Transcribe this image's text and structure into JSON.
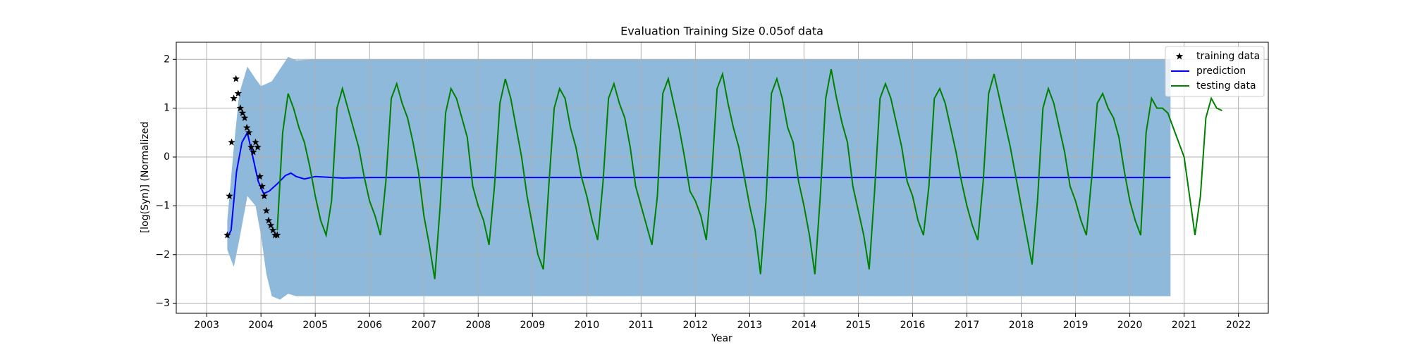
{
  "chart_data": {
    "type": "line",
    "title": "Evaluation Training Size 0.05of data",
    "xlabel": "Year",
    "ylabel": "[log(Syn)] (Normalized",
    "xlim": [
      2002.44,
      2022.55
    ],
    "ylim": [
      -3.2,
      2.35
    ],
    "xticks": [
      2003,
      2004,
      2005,
      2006,
      2007,
      2008,
      2009,
      2010,
      2011,
      2012,
      2013,
      2014,
      2015,
      2016,
      2017,
      2018,
      2019,
      2020,
      2021,
      2022
    ],
    "yticks": [
      {
        "value": -3,
        "label": "−3"
      },
      {
        "value": -2,
        "label": "−2"
      },
      {
        "value": -1,
        "label": "−1"
      },
      0,
      1,
      2
    ],
    "grid": true,
    "legend": "upper right",
    "band": {
      "color": "#8fb9da",
      "x": [
        2003.38,
        2003.5,
        2003.6,
        2003.75,
        2003.9,
        2004.0,
        2004.1,
        2004.2,
        2004.35,
        2004.5,
        2004.65,
        2005.0,
        2020.75
      ],
      "upper": [
        -1.3,
        0.2,
        1.3,
        1.85,
        1.6,
        1.45,
        1.5,
        1.55,
        1.8,
        2.05,
        1.98,
        2.0,
        2.0
      ],
      "lower": [
        -1.9,
        -2.25,
        -1.7,
        -0.8,
        -1.0,
        -1.6,
        -2.4,
        -2.85,
        -2.92,
        -2.8,
        -2.85,
        -2.85,
        -2.85
      ]
    },
    "series": [
      {
        "name": "training data",
        "type": "scatter",
        "color": "#000000",
        "x": [
          2003.38,
          2003.42,
          2003.46,
          2003.5,
          2003.54,
          2003.58,
          2003.62,
          2003.66,
          2003.7,
          2003.74,
          2003.78,
          2003.82,
          2003.86,
          2003.9,
          2003.94,
          2003.98,
          2004.02,
          2004.06,
          2004.1,
          2004.14,
          2004.18,
          2004.22,
          2004.26,
          2004.3
        ],
        "values": [
          -1.6,
          -0.8,
          0.3,
          1.2,
          1.6,
          1.3,
          1.0,
          0.9,
          0.8,
          0.6,
          0.5,
          0.2,
          0.1,
          0.3,
          0.2,
          -0.4,
          -0.6,
          -0.8,
          -1.1,
          -1.3,
          -1.4,
          -1.5,
          -1.6,
          -1.6
        ]
      },
      {
        "name": "prediction",
        "type": "line",
        "color": "#0000ff",
        "x": [
          2003.38,
          2003.45,
          2003.55,
          2003.65,
          2003.75,
          2003.85,
          2003.95,
          2004.05,
          2004.15,
          2004.3,
          2004.45,
          2004.55,
          2004.65,
          2004.8,
          2005.0,
          2005.5,
          2006.0,
          2020.75
        ],
        "values": [
          -1.65,
          -1.5,
          -0.3,
          0.3,
          0.5,
          0.0,
          -0.5,
          -0.75,
          -0.7,
          -0.55,
          -0.38,
          -0.33,
          -0.4,
          -0.45,
          -0.4,
          -0.43,
          -0.42,
          -0.42
        ]
      },
      {
        "name": "testing data",
        "type": "line",
        "color": "#008000",
        "x": [
          2004.3,
          2004.4,
          2004.5,
          2004.6,
          2004.7,
          2004.8,
          2004.9,
          2005.0,
          2005.1,
          2005.2,
          2005.3,
          2005.4,
          2005.5,
          2005.6,
          2005.7,
          2005.8,
          2005.9,
          2006.0,
          2006.1,
          2006.2,
          2006.3,
          2006.4,
          2006.5,
          2006.6,
          2006.7,
          2006.8,
          2006.9,
          2007.0,
          2007.1,
          2007.2,
          2007.3,
          2007.4,
          2007.5,
          2007.6,
          2007.7,
          2007.8,
          2007.9,
          2008.0,
          2008.1,
          2008.2,
          2008.3,
          2008.4,
          2008.5,
          2008.6,
          2008.7,
          2008.8,
          2008.9,
          2009.0,
          2009.1,
          2009.2,
          2009.3,
          2009.4,
          2009.5,
          2009.6,
          2009.7,
          2009.8,
          2009.9,
          2010.0,
          2010.1,
          2010.2,
          2010.3,
          2010.4,
          2010.5,
          2010.6,
          2010.7,
          2010.8,
          2010.9,
          2011.0,
          2011.1,
          2011.2,
          2011.3,
          2011.4,
          2011.5,
          2011.6,
          2011.7,
          2011.8,
          2011.9,
          2012.0,
          2012.1,
          2012.2,
          2012.3,
          2012.4,
          2012.5,
          2012.6,
          2012.7,
          2012.8,
          2012.9,
          2013.0,
          2013.1,
          2013.2,
          2013.3,
          2013.4,
          2013.5,
          2013.6,
          2013.7,
          2013.8,
          2013.9,
          2014.0,
          2014.1,
          2014.2,
          2014.3,
          2014.4,
          2014.5,
          2014.6,
          2014.7,
          2014.8,
          2014.9,
          2015.0,
          2015.1,
          2015.2,
          2015.3,
          2015.4,
          2015.5,
          2015.6,
          2015.7,
          2015.8,
          2015.9,
          2016.0,
          2016.1,
          2016.2,
          2016.3,
          2016.4,
          2016.5,
          2016.6,
          2016.7,
          2016.8,
          2016.9,
          2017.0,
          2017.1,
          2017.2,
          2017.3,
          2017.4,
          2017.5,
          2017.6,
          2017.7,
          2017.8,
          2017.9,
          2018.0,
          2018.1,
          2018.2,
          2018.3,
          2018.4,
          2018.5,
          2018.6,
          2018.7,
          2018.8,
          2018.9,
          2019.0,
          2019.1,
          2019.2,
          2019.3,
          2019.4,
          2019.5,
          2019.6,
          2019.7,
          2019.8,
          2019.9,
          2020.0,
          2020.1,
          2020.2,
          2020.3,
          2020.4,
          2020.5,
          2020.6,
          2020.7,
          2020.8,
          2020.9,
          2021.0,
          2021.1,
          2021.2,
          2021.3,
          2021.4,
          2021.5,
          2021.6,
          2021.7
        ],
        "values": [
          -1.5,
          0.5,
          1.3,
          1.0,
          0.6,
          0.3,
          -0.2,
          -0.8,
          -1.3,
          -1.6,
          -0.9,
          1.0,
          1.4,
          1.0,
          0.6,
          0.2,
          -0.4,
          -0.9,
          -1.2,
          -1.6,
          -0.5,
          1.2,
          1.5,
          1.1,
          0.8,
          0.3,
          -0.3,
          -1.2,
          -1.8,
          -2.5,
          -1.0,
          0.9,
          1.4,
          1.2,
          0.8,
          0.4,
          -0.6,
          -1.0,
          -1.3,
          -1.8,
          -0.6,
          1.1,
          1.6,
          1.2,
          0.6,
          0.0,
          -0.8,
          -1.4,
          -2.0,
          -2.3,
          -0.6,
          1.0,
          1.4,
          1.2,
          0.6,
          0.2,
          -0.4,
          -0.8,
          -1.3,
          -1.7,
          -0.5,
          1.2,
          1.5,
          1.1,
          0.8,
          0.2,
          -0.6,
          -1.0,
          -1.4,
          -1.8,
          -0.8,
          1.3,
          1.6,
          1.1,
          0.6,
          0.0,
          -0.7,
          -0.9,
          -1.2,
          -1.7,
          -0.4,
          1.4,
          1.7,
          1.1,
          0.6,
          0.2,
          -0.4,
          -1.0,
          -1.5,
          -2.4,
          -0.9,
          1.3,
          1.6,
          1.2,
          0.6,
          0.3,
          -0.5,
          -1.0,
          -1.6,
          -2.4,
          -0.8,
          1.2,
          1.8,
          1.2,
          0.7,
          0.3,
          -0.6,
          -1.1,
          -1.6,
          -2.3,
          -0.7,
          1.2,
          1.5,
          1.2,
          0.7,
          0.2,
          -0.5,
          -0.8,
          -1.3,
          -1.6,
          -0.6,
          1.2,
          1.4,
          1.1,
          0.6,
          0.1,
          -0.5,
          -1.0,
          -1.4,
          -1.7,
          -0.5,
          1.3,
          1.7,
          1.2,
          0.7,
          0.2,
          -0.4,
          -1.0,
          -1.6,
          -2.2,
          -0.9,
          1.0,
          1.4,
          1.1,
          0.6,
          0.1,
          -0.6,
          -0.9,
          -1.3,
          -1.6,
          -0.4,
          1.1,
          1.3,
          1.0,
          0.8,
          0.4,
          -0.3,
          -0.9,
          -1.3,
          -1.6,
          0.5,
          1.2,
          1.0,
          1.0,
          0.9,
          0.6,
          0.3,
          0.0,
          -0.8,
          -1.6,
          -0.8,
          0.8,
          1.2,
          1.0,
          0.95
        ]
      }
    ]
  }
}
